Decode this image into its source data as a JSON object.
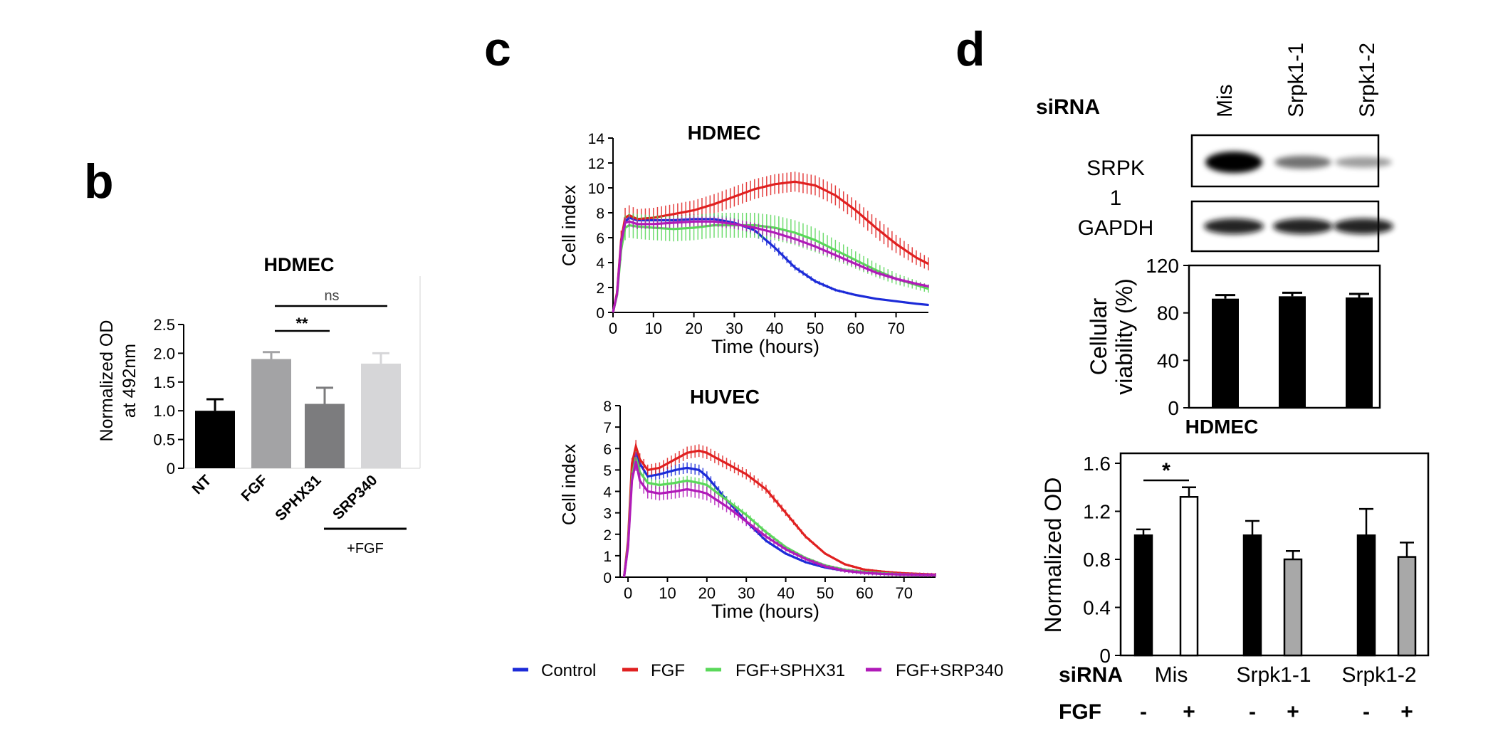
{
  "panels": {
    "b": "b",
    "c": "c",
    "d": "d"
  },
  "legend": [
    {
      "name": "Control",
      "color": "#1c2bd8"
    },
    {
      "name": "FGF",
      "color": "#e02020"
    },
    {
      "name": "FGF+SPHX31",
      "color": "#5ad85a"
    },
    {
      "name": "FGF+SRP340",
      "color": "#b01ab8"
    }
  ],
  "chart_data": [
    {
      "id": "b",
      "type": "bar",
      "title": "HDMEC",
      "ylabel": "Normalized OD at 492nm",
      "ylim": [
        0,
        2.5
      ],
      "yticks": [
        "0",
        "0.5",
        "1.0",
        "1.5",
        "2.0",
        "2.5"
      ],
      "categories": [
        "NT",
        "FGF",
        "SPHX31",
        "SRP340"
      ],
      "values": [
        1.0,
        1.9,
        1.12,
        1.82
      ],
      "errors": [
        0.2,
        0.12,
        0.28,
        0.18
      ],
      "bar_colors": [
        "#000000",
        "#a3a3a5",
        "#7c7c7e",
        "#d6d6d8"
      ],
      "group_label": "+FGF",
      "significance": [
        {
          "between": [
            "FGF",
            "SPHX31"
          ],
          "label": "**"
        },
        {
          "between": [
            "FGF",
            "SRP340"
          ],
          "label": "ns"
        }
      ]
    },
    {
      "id": "c-top",
      "type": "line",
      "title": "HDMEC",
      "xlabel": "Time (hours)",
      "ylabel": "Cell index",
      "xlim": [
        0,
        78
      ],
      "ylim": [
        0,
        14
      ],
      "xticks": [
        "0",
        "10",
        "20",
        "30",
        "40",
        "50",
        "60",
        "70"
      ],
      "yticks": [
        "0",
        "2",
        "4",
        "6",
        "8",
        "10",
        "12",
        "14"
      ],
      "series": [
        {
          "name": "Control",
          "color": "#1c2bd8",
          "x": [
            0,
            1,
            2,
            3,
            4,
            6,
            10,
            15,
            20,
            25,
            30,
            35,
            40,
            45,
            50,
            55,
            60,
            65,
            70,
            75,
            78
          ],
          "y": [
            0,
            1.5,
            5.5,
            7.3,
            7.6,
            7.4,
            7.4,
            7.4,
            7.5,
            7.5,
            7.2,
            6.6,
            5.2,
            3.6,
            2.5,
            1.8,
            1.4,
            1.1,
            0.9,
            0.7,
            0.6
          ],
          "err": 0.4
        },
        {
          "name": "FGF",
          "color": "#e02020",
          "x": [
            0,
            1,
            2,
            3,
            4,
            6,
            10,
            15,
            20,
            25,
            30,
            35,
            40,
            45,
            50,
            55,
            60,
            65,
            70,
            75,
            78
          ],
          "y": [
            0,
            1.6,
            5.8,
            7.6,
            7.8,
            7.5,
            7.6,
            7.9,
            8.2,
            8.7,
            9.3,
            9.9,
            10.3,
            10.5,
            10.2,
            9.4,
            8.2,
            6.8,
            5.5,
            4.4,
            3.9
          ],
          "err": 0.8
        },
        {
          "name": "FGF+SPHX31",
          "color": "#5ad85a",
          "x": [
            0,
            1,
            2,
            3,
            4,
            6,
            10,
            15,
            20,
            25,
            30,
            35,
            40,
            45,
            50,
            55,
            60,
            65,
            70,
            75,
            78
          ],
          "y": [
            0,
            1.4,
            5.0,
            6.8,
            7.0,
            6.9,
            6.8,
            6.7,
            6.8,
            7.0,
            7.0,
            7.0,
            6.8,
            6.4,
            5.8,
            5.0,
            4.2,
            3.4,
            2.7,
            2.2,
            1.9
          ],
          "err": 1.0
        },
        {
          "name": "FGF+SRP340",
          "color": "#b01ab8",
          "x": [
            0,
            1,
            2,
            3,
            4,
            6,
            10,
            15,
            20,
            25,
            30,
            35,
            40,
            45,
            50,
            55,
            60,
            65,
            70,
            75,
            78
          ],
          "y": [
            0,
            1.5,
            5.6,
            7.2,
            7.3,
            7.1,
            7.1,
            7.2,
            7.3,
            7.3,
            7.1,
            6.8,
            6.4,
            5.9,
            5.3,
            4.6,
            3.9,
            3.2,
            2.7,
            2.3,
            2.1
          ],
          "err": 0.4
        }
      ]
    },
    {
      "id": "c-bottom",
      "type": "line",
      "title": "HUVEC",
      "xlabel": "Time (hours)",
      "ylabel": "Cell index",
      "xlim": [
        -2,
        78
      ],
      "ylim": [
        0,
        8
      ],
      "xticks": [
        "0",
        "10",
        "20",
        "30",
        "40",
        "50",
        "60",
        "70"
      ],
      "yticks": [
        "0",
        "1",
        "2",
        "3",
        "4",
        "5",
        "6",
        "7",
        "8"
      ],
      "series": [
        {
          "name": "Control",
          "color": "#1c2bd8",
          "x": [
            -1,
            0,
            1,
            2,
            3,
            5,
            8,
            12,
            15,
            18,
            20,
            25,
            30,
            35,
            40,
            45,
            50,
            55,
            60,
            65,
            70,
            78
          ],
          "y": [
            0,
            1.5,
            5.0,
            5.9,
            5.3,
            4.7,
            4.8,
            5.0,
            5.1,
            5.0,
            4.7,
            3.6,
            2.6,
            1.7,
            1.1,
            0.7,
            0.45,
            0.3,
            0.2,
            0.15,
            0.12,
            0.1
          ],
          "err": 0.3
        },
        {
          "name": "FGF",
          "color": "#e02020",
          "x": [
            -1,
            0,
            1,
            2,
            3,
            5,
            8,
            12,
            15,
            18,
            20,
            25,
            30,
            35,
            40,
            45,
            50,
            55,
            60,
            65,
            70,
            78
          ],
          "y": [
            0,
            1.7,
            5.3,
            6.1,
            5.5,
            5.0,
            5.1,
            5.5,
            5.8,
            5.9,
            5.8,
            5.3,
            4.8,
            4.1,
            3.0,
            1.9,
            1.1,
            0.6,
            0.35,
            0.25,
            0.18,
            0.12
          ],
          "err": 0.3
        },
        {
          "name": "FGF+SPHX31",
          "color": "#5ad85a",
          "x": [
            -1,
            0,
            1,
            2,
            3,
            5,
            8,
            12,
            15,
            18,
            20,
            25,
            30,
            35,
            40,
            45,
            50,
            55,
            60,
            65,
            70,
            78
          ],
          "y": [
            0,
            1.5,
            4.7,
            5.6,
            4.9,
            4.4,
            4.3,
            4.4,
            4.5,
            4.4,
            4.3,
            3.6,
            2.9,
            2.1,
            1.4,
            0.9,
            0.55,
            0.35,
            0.25,
            0.18,
            0.13,
            0.1
          ],
          "err": 0.3
        },
        {
          "name": "FGF+SRP340",
          "color": "#b01ab8",
          "x": [
            -1,
            0,
            1,
            2,
            3,
            5,
            8,
            12,
            15,
            18,
            20,
            25,
            30,
            35,
            40,
            45,
            50,
            55,
            60,
            65,
            70,
            78
          ],
          "y": [
            0,
            1.4,
            4.5,
            5.4,
            4.5,
            4.0,
            3.9,
            4.0,
            4.1,
            4.0,
            3.9,
            3.3,
            2.6,
            1.9,
            1.3,
            0.85,
            0.5,
            0.3,
            0.2,
            0.15,
            0.12,
            0.1
          ],
          "err": 0.5
        }
      ]
    },
    {
      "id": "d-viability",
      "type": "bar",
      "ylabel": "Cellular viability (%)",
      "ylim": [
        0,
        120
      ],
      "yticks": [
        "0",
        "40",
        "80",
        "120"
      ],
      "categories": [
        "Mis",
        "Srpk1-1",
        "Srpk1-2"
      ],
      "values": [
        92,
        94,
        93
      ],
      "errors": [
        3,
        3,
        3
      ]
    },
    {
      "id": "d-od",
      "type": "bar",
      "title": "HDMEC",
      "ylabel": "Normalized OD",
      "ylim": [
        0,
        1.6
      ],
      "yticks": [
        "0",
        "0.4",
        "0.8",
        "1.2",
        "1.6"
      ],
      "categories": [
        "Mis",
        "Srpk1-1",
        "Srpk1-2"
      ],
      "series": [
        {
          "fgf": "-",
          "fill": "#000000",
          "values": [
            1.0,
            1.0,
            1.0
          ],
          "errors": [
            0.05,
            0.12,
            0.22
          ]
        },
        {
          "fgf": "+",
          "fill": "#ffffff",
          "values": [
            1.32,
            0.8,
            0.82
          ],
          "errors": [
            0.08,
            0.07,
            0.12
          ]
        }
      ],
      "fill_plus_knockdown": "#a8a8a8",
      "significance": {
        "between": [
          "Mis -",
          "Mis +"
        ],
        "label": "*"
      },
      "row_labels": {
        "sirna": "siRNA",
        "fgf": "FGF"
      },
      "fgf_signs": [
        "-",
        "+",
        "-",
        "+",
        "-",
        "+"
      ]
    }
  ],
  "blot": {
    "sirna_label": "siRNA",
    "lanes": [
      "Mis",
      "Srpk1-1",
      "Srpk1-2"
    ],
    "srpk_label_line1": "SRPK",
    "srpk_label_line2": "1",
    "gapdh_label": "GAPDH",
    "srpk_band_intensity": [
      1.0,
      0.35,
      0.18
    ],
    "gapdh_band_intensity": [
      0.9,
      0.9,
      0.9
    ]
  }
}
